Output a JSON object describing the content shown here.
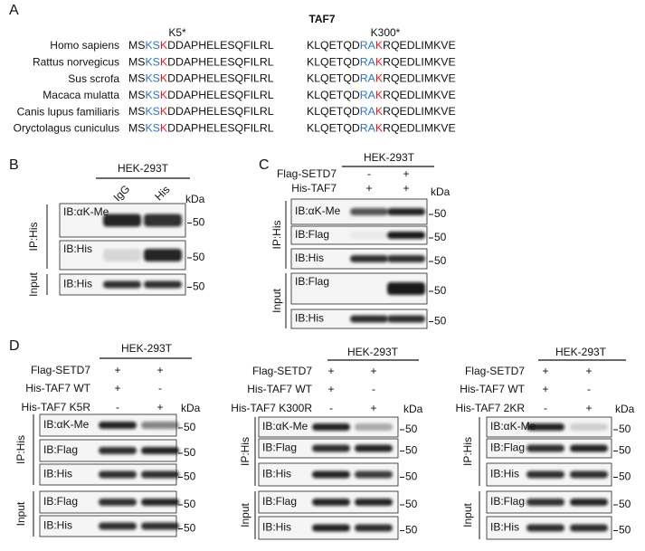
{
  "panel_a": {
    "label": "A",
    "title": "TAF7",
    "sites": [
      "K5*",
      "K300*"
    ],
    "rows": [
      {
        "species": "Homo sapiens",
        "seq1": [
          "MS",
          "KS",
          "K",
          "DDAPHELESQFILRL"
        ],
        "seq2": [
          "KLQETQD",
          "RA",
          "K",
          "RQEDLIMKVE"
        ]
      },
      {
        "species": "Rattus norvegicus",
        "seq1": [
          "MS",
          "KS",
          "K",
          "DDAPHELESQFILRL"
        ],
        "seq2": [
          "KLQETQD",
          "RA",
          "K",
          "RQEDLIMKVE"
        ]
      },
      {
        "species": "Sus scrofa",
        "seq1": [
          "MS",
          "KS",
          "K",
          "DDAPHELESQFILRL"
        ],
        "seq2": [
          "KLQETQD",
          "RA",
          "K",
          "RQEDLIMKVE"
        ]
      },
      {
        "species": "Macaca mulatta",
        "seq1": [
          "MS",
          "KS",
          "K",
          "DDAPHELESQFILRL"
        ],
        "seq2": [
          "KLQETQD",
          "RA",
          "K",
          "RQEDLIMKVE"
        ]
      },
      {
        "species": "Canis lupus familiaris",
        "seq1": [
          "MS",
          "KS",
          "K",
          "DDAPHELESQFILRL"
        ],
        "seq2": [
          "KLQETQD",
          "RA",
          "K",
          "RQEDLIMKVE"
        ]
      },
      {
        "species": "Oryctolagus cuniculus",
        "seq1": [
          "MS",
          "KS",
          "K",
          "DDAPHELESQFILRL"
        ],
        "seq2": [
          "KLQETQD",
          "RA",
          "K",
          "RQEDLIMKVE"
        ]
      }
    ]
  },
  "panel_b": {
    "label": "B",
    "cell_line": "HEK-293T",
    "lanes": [
      "IgG",
      "His"
    ],
    "unit": "kDa",
    "groups": [
      "IP:His",
      "Input"
    ],
    "blots": [
      {
        "label": "IB:αK-Me",
        "marker": "50"
      },
      {
        "label": "IB:His",
        "marker": "50"
      },
      {
        "label": "IB:His",
        "marker": "50"
      }
    ]
  },
  "panel_c": {
    "label": "C",
    "cell_line": "HEK-293T",
    "conditions": [
      {
        "name": "Flag-SETD7",
        "lanes": [
          "-",
          "+"
        ]
      },
      {
        "name": "His-TAF7",
        "lanes": [
          "+",
          "+"
        ]
      }
    ],
    "unit": "kDa",
    "groups": [
      "IP:His",
      "Input"
    ],
    "blots": [
      {
        "label": "IB:αK-Me",
        "marker": "50"
      },
      {
        "label": "IB:Flag",
        "marker": "50"
      },
      {
        "label": "IB:His",
        "marker": "50"
      },
      {
        "label": "IB:Flag",
        "marker": "50"
      },
      {
        "label": "IB:His",
        "marker": "50"
      }
    ]
  },
  "panel_d": {
    "label": "D",
    "subpanels": [
      {
        "cell_line": "HEK-293T",
        "conditions": [
          {
            "name": "Flag-SETD7",
            "lanes": [
              "+",
              "+"
            ]
          },
          {
            "name": "His-TAF7 WT",
            "lanes": [
              "+",
              "-"
            ]
          },
          {
            "name": "His-TAF7 K5R",
            "lanes": [
              "-",
              "+"
            ]
          }
        ],
        "unit": "kDa",
        "groups": [
          "IP:His",
          "Input"
        ],
        "blots": [
          {
            "label": "IB:αK-Me",
            "marker": "50"
          },
          {
            "label": "IB:Flag",
            "marker": "50"
          },
          {
            "label": "IB:His",
            "marker": "50"
          },
          {
            "label": "IB:Flag",
            "marker": "50"
          },
          {
            "label": "IB:His",
            "marker": "50"
          }
        ]
      },
      {
        "cell_line": "HEK-293T",
        "conditions": [
          {
            "name": "Flag-SETD7",
            "lanes": [
              "+",
              "+"
            ]
          },
          {
            "name": "His-TAF7 WT",
            "lanes": [
              "+",
              "-"
            ]
          },
          {
            "name": "His-TAF7 K300R",
            "lanes": [
              "-",
              "+"
            ]
          }
        ],
        "unit": "kDa",
        "groups": [
          "IP:His",
          "Input"
        ],
        "blots": [
          {
            "label": "IB:αK-Me",
            "marker": "50"
          },
          {
            "label": "IB:Flag",
            "marker": "50"
          },
          {
            "label": "IB:His",
            "marker": "50"
          },
          {
            "label": "IB:Flag",
            "marker": "50"
          },
          {
            "label": "IB:His",
            "marker": "50"
          }
        ]
      },
      {
        "cell_line": "HEK-293T",
        "conditions": [
          {
            "name": "Flag-SETD7",
            "lanes": [
              "+",
              "+"
            ]
          },
          {
            "name": "His-TAF7 WT",
            "lanes": [
              "+",
              "-"
            ]
          },
          {
            "name": "His-TAF7 2KR",
            "lanes": [
              "-",
              "+"
            ]
          }
        ],
        "unit": "kDa",
        "groups": [
          "IP:His",
          "Input"
        ],
        "blots": [
          {
            "label": "IB:αK-Me",
            "marker": "50"
          },
          {
            "label": "IB:Flag",
            "marker": "50"
          },
          {
            "label": "IB:His",
            "marker": "50"
          },
          {
            "label": "IB:Flag",
            "marker": "50"
          },
          {
            "label": "IB:His",
            "marker": "50"
          }
        ]
      }
    ]
  }
}
